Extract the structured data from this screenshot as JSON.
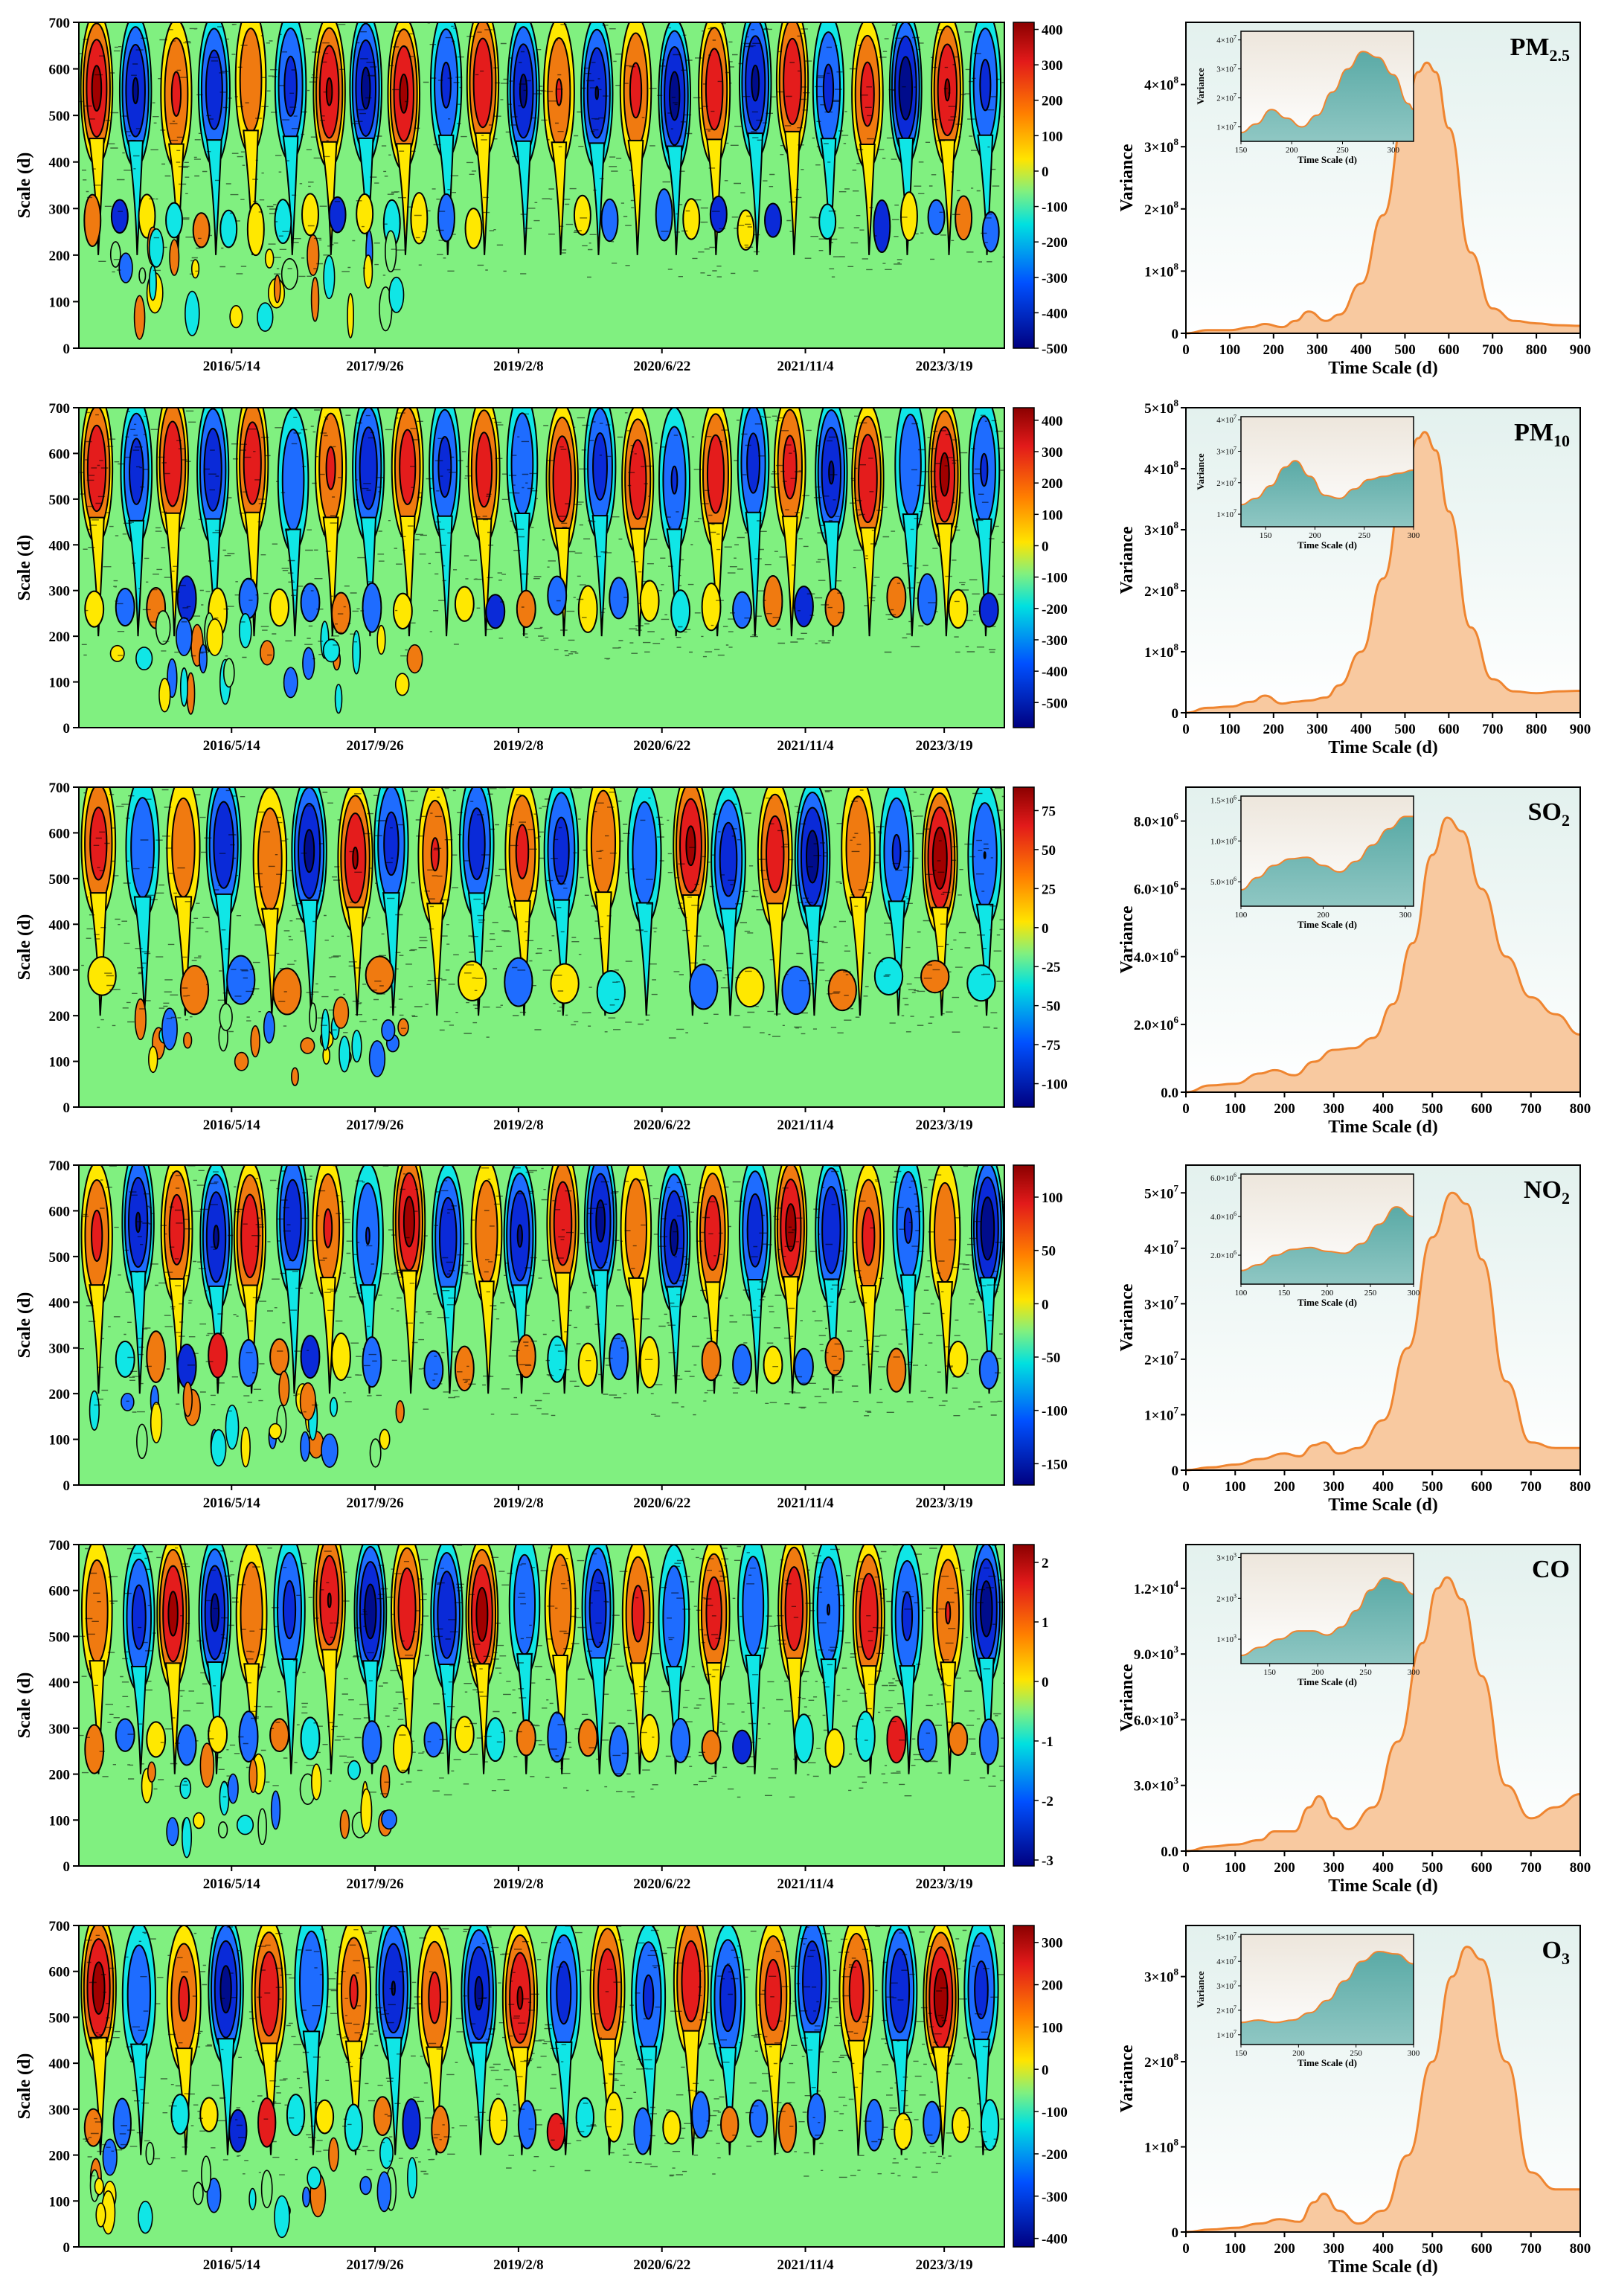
{
  "chart_data": [
    {
      "type": "heatmap",
      "pollutant": "PM2.5",
      "ylabel": "Scale (d)",
      "ylim": [
        0,
        700
      ],
      "yticks": [
        "0",
        "100",
        "200",
        "300",
        "400",
        "500",
        "600",
        "700"
      ],
      "xticks": [
        "2016/5/14",
        "2017/9/26",
        "2019/2/8",
        "2020/6/22",
        "2021/11/4",
        "2023/3/19"
      ],
      "colorbar_ticks": [
        "400",
        "300",
        "200",
        "100",
        "0",
        "-100",
        "-200",
        "-300",
        "-400",
        "-500"
      ],
      "colorbar_range": [
        -500,
        420
      ],
      "lobes": 24,
      "mid_lobes": 34
    },
    {
      "type": "area",
      "title_main": "PM",
      "title_sub": "2.5",
      "xlabel": "Time Scale (d)",
      "ylabel": "Variance",
      "xlim": [
        0,
        900
      ],
      "xticks": [
        "0",
        "100",
        "200",
        "300",
        "400",
        "500",
        "600",
        "700",
        "800",
        "900"
      ],
      "ylim": [
        0,
        5
      ],
      "yticks": [
        "0",
        "1×10",
        "2×10",
        "3×10",
        "4×10"
      ],
      "ytick_exp": "8",
      "peak_x": 550,
      "peak_y": 4.35,
      "curve_x": [
        0,
        50,
        100,
        150,
        180,
        220,
        250,
        280,
        320,
        350,
        400,
        450,
        500,
        530,
        550,
        570,
        600,
        650,
        700,
        750,
        800,
        850,
        900
      ],
      "curve_y": [
        0,
        0.05,
        0.05,
        0.1,
        0.15,
        0.1,
        0.2,
        0.35,
        0.2,
        0.3,
        0.8,
        1.9,
        3.5,
        4.2,
        4.35,
        4.2,
        3.3,
        1.3,
        0.4,
        0.2,
        0.16,
        0.13,
        0.12
      ],
      "inset": {
        "xlabel": "Time Scale (d)",
        "ylabel": "Variance",
        "xticks": [
          "150",
          "200",
          "250",
          "300"
        ],
        "xlim": [
          150,
          320
        ],
        "yticks": [
          "1×10",
          "2×10",
          "3×10",
          "4×10"
        ],
        "ytick_exp": "7",
        "ylim": [
          0.5,
          4.3
        ],
        "curve_x": [
          150,
          165,
          180,
          195,
          210,
          225,
          240,
          255,
          270,
          285,
          300,
          315,
          320
        ],
        "curve_y": [
          0.8,
          1.1,
          1.6,
          1.3,
          1.0,
          1.4,
          2.2,
          3.0,
          3.6,
          3.4,
          2.8,
          1.8,
          1.6
        ]
      }
    },
    {
      "type": "heatmap",
      "pollutant": "PM10",
      "ylabel": "Scale (d)",
      "ylim": [
        0,
        700
      ],
      "yticks": [
        "0",
        "100",
        "200",
        "300",
        "400",
        "500",
        "600",
        "700"
      ],
      "xticks": [
        "2016/5/14",
        "2017/9/26",
        "2019/2/8",
        "2020/6/22",
        "2021/11/4",
        "2023/3/19"
      ],
      "colorbar_ticks": [
        "400",
        "300",
        "200",
        "100",
        "0",
        "-100",
        "-200",
        "-300",
        "-400",
        "-500"
      ],
      "colorbar_range": [
        -580,
        440
      ],
      "lobes": 24,
      "mid_lobes": 30
    },
    {
      "type": "area",
      "title_main": "PM",
      "title_sub": "10",
      "xlabel": "Time Scale (d)",
      "ylabel": "Variance",
      "xlim": [
        0,
        900
      ],
      "xticks": [
        "0",
        "100",
        "200",
        "300",
        "400",
        "500",
        "600",
        "700",
        "800",
        "900"
      ],
      "ylim": [
        0,
        5
      ],
      "yticks": [
        "0",
        "1×10",
        "2×10",
        "3×10",
        "4×10",
        "5×10"
      ],
      "ytick_exp": "8",
      "peak_x": 545,
      "peak_y": 4.6,
      "curve_x": [
        0,
        50,
        100,
        150,
        180,
        220,
        250,
        280,
        320,
        350,
        400,
        450,
        500,
        530,
        545,
        570,
        600,
        650,
        700,
        750,
        800,
        850,
        900
      ],
      "curve_y": [
        0,
        0.08,
        0.1,
        0.18,
        0.28,
        0.15,
        0.18,
        0.2,
        0.25,
        0.45,
        1.0,
        2.2,
        3.9,
        4.5,
        4.6,
        4.3,
        3.3,
        1.4,
        0.55,
        0.35,
        0.32,
        0.35,
        0.36
      ],
      "inset": {
        "xlabel": "Time Scale (d)",
        "ylabel": "Variance",
        "xticks": [
          "150",
          "200",
          "250",
          "300"
        ],
        "xlim": [
          125,
          300
        ],
        "yticks": [
          "1×10",
          "2×10",
          "3×10",
          "4×10"
        ],
        "ytick_exp": "7",
        "ylim": [
          0.6,
          4.1
        ],
        "curve_x": [
          125,
          140,
          155,
          170,
          180,
          195,
          210,
          225,
          240,
          255,
          270,
          285,
          300
        ],
        "curve_y": [
          1.3,
          1.5,
          1.9,
          2.5,
          2.7,
          2.2,
          1.6,
          1.5,
          1.8,
          2.1,
          2.2,
          2.3,
          2.4
        ]
      }
    },
    {
      "type": "heatmap",
      "pollutant": "SO2",
      "ylabel": "Scale (d)",
      "ylim": [
        0,
        700
      ],
      "yticks": [
        "0",
        "100",
        "200",
        "300",
        "400",
        "500",
        "600",
        "700"
      ],
      "xticks": [
        "2016/5/14",
        "2017/9/26",
        "2019/2/8",
        "2020/6/22",
        "2021/11/4",
        "2023/3/19"
      ],
      "colorbar_ticks": [
        "75",
        "50",
        "25",
        "0",
        "-25",
        "-50",
        "-75",
        "-100"
      ],
      "colorbar_range": [
        -115,
        90
      ],
      "lobes": 22,
      "mid_lobes": 20
    },
    {
      "type": "area",
      "title_main": "SO",
      "title_sub": "2",
      "xlabel": "Time Scale (d)",
      "ylabel": "Variance",
      "xlim": [
        0,
        800
      ],
      "xticks": [
        "0",
        "100",
        "200",
        "300",
        "400",
        "500",
        "600",
        "700",
        "800"
      ],
      "ylim": [
        0,
        9
      ],
      "yticks": [
        "0.0",
        "2.0×10",
        "4.0×10",
        "6.0×10",
        "8.0×10"
      ],
      "ytick_exp": "6",
      "peak_x": 530,
      "peak_y": 8.1,
      "curve_x": [
        0,
        50,
        100,
        150,
        180,
        220,
        260,
        300,
        340,
        380,
        420,
        460,
        500,
        530,
        560,
        600,
        650,
        700,
        750,
        800
      ],
      "curve_y": [
        0,
        0.2,
        0.25,
        0.55,
        0.65,
        0.5,
        0.9,
        1.25,
        1.3,
        1.6,
        2.6,
        4.4,
        7.0,
        8.1,
        7.7,
        6.0,
        4.0,
        2.8,
        2.3,
        1.7
      ],
      "inset": {
        "xlabel": "Time Scale (d)",
        "ylabel": "",
        "xticks": [
          "100",
          "200",
          "300"
        ],
        "xlim": [
          100,
          310
        ],
        "yticks": [
          "5.0×10",
          "1.0×10",
          "1.5×10"
        ],
        "ytick_exp": "6",
        "ylim": [
          0.2,
          1.55
        ],
        "curve_x": [
          100,
          120,
          140,
          160,
          180,
          200,
          220,
          240,
          260,
          280,
          300,
          310
        ],
        "curve_y": [
          0.4,
          0.55,
          0.7,
          0.78,
          0.8,
          0.7,
          0.62,
          0.75,
          0.95,
          1.15,
          1.3,
          1.3
        ]
      }
    },
    {
      "type": "area",
      "title_main": "NO",
      "title_sub": "2",
      "xlabel": "Time Scale (d)",
      "ylabel": "Variance",
      "xlim": [
        0,
        800
      ],
      "xticks": [
        "0",
        "100",
        "200",
        "300",
        "400",
        "500",
        "600",
        "700",
        "800"
      ],
      "ylim": [
        0,
        5.5
      ],
      "yticks": [
        "0",
        "1×10",
        "2×10",
        "3×10",
        "4×10",
        "5×10"
      ],
      "ytick_exp": "7",
      "peak_x": 540,
      "peak_y": 5.0,
      "curve_x": [
        0,
        50,
        100,
        150,
        200,
        230,
        260,
        280,
        310,
        350,
        400,
        450,
        500,
        540,
        570,
        600,
        650,
        700,
        750,
        800
      ],
      "curve_y": [
        0,
        0.05,
        0.1,
        0.2,
        0.3,
        0.25,
        0.45,
        0.5,
        0.3,
        0.4,
        0.9,
        2.2,
        4.2,
        5.0,
        4.8,
        3.8,
        1.6,
        0.5,
        0.4,
        0.4
      ],
      "inset": {
        "xlabel": "Time Scale (d)",
        "ylabel": "",
        "xticks": [
          "100",
          "150",
          "200",
          "250",
          "300"
        ],
        "xlim": [
          100,
          300
        ],
        "yticks": [
          "2.0×10",
          "4.0×10",
          "6.0×10"
        ],
        "ytick_exp": "6",
        "ylim": [
          0.5,
          6.2
        ],
        "curve_x": [
          100,
          120,
          140,
          160,
          180,
          200,
          220,
          240,
          260,
          280,
          300
        ],
        "curve_y": [
          1.2,
          1.5,
          2.0,
          2.3,
          2.4,
          2.2,
          2.1,
          2.6,
          3.6,
          4.5,
          4.0
        ]
      }
    },
    {
      "type": "heatmap",
      "pollutant": "NO2",
      "ylabel": "Scale (d)",
      "ylim": [
        0,
        700
      ],
      "yticks": [
        "0",
        "100",
        "200",
        "300",
        "400",
        "500",
        "600",
        "700"
      ],
      "xticks": [
        "2016/5/14",
        "2017/9/26",
        "2019/2/8",
        "2020/6/22",
        "2021/11/4",
        "2023/3/19"
      ],
      "colorbar_ticks": [
        "100",
        "50",
        "0",
        "-50",
        "-100",
        "-150"
      ],
      "colorbar_range": [
        -170,
        130
      ],
      "lobes": 24,
      "mid_lobes": 30
    },
    {
      "type": "heatmap",
      "pollutant": "CO",
      "ylabel": "Scale (d)",
      "ylim": [
        0,
        700
      ],
      "yticks": [
        "0",
        "100",
        "200",
        "300",
        "400",
        "500",
        "600",
        "700"
      ],
      "xticks": [
        "2016/5/14",
        "2017/9/26",
        "2019/2/8",
        "2020/6/22",
        "2021/11/4",
        "2023/3/19"
      ],
      "colorbar_ticks": [
        "2",
        "1",
        "0",
        "-1",
        "-2",
        "-3"
      ],
      "colorbar_range": [
        -3.1,
        2.3
      ],
      "lobes": 24,
      "mid_lobes": 30
    },
    {
      "type": "area",
      "title_main": "CO",
      "title_sub": "",
      "xlabel": "Time Scale (d)",
      "ylabel": "Variance",
      "xlim": [
        0,
        800
      ],
      "xticks": [
        "0",
        "100",
        "200",
        "300",
        "400",
        "500",
        "600",
        "700",
        "800"
      ],
      "ylim": [
        0,
        1.4
      ],
      "yticks": [
        "0.0",
        "3.0×10",
        "6.0×10",
        "9.0×10",
        "1.2×10"
      ],
      "ytick_exp3": "3",
      "ytick_exp4": "4",
      "ytick_exps": [
        "",
        "3",
        "3",
        "3",
        "4"
      ],
      "peak_x": 530,
      "peak_y": 1.25,
      "curve_x": [
        0,
        50,
        100,
        150,
        180,
        220,
        250,
        270,
        300,
        330,
        380,
        430,
        480,
        510,
        530,
        560,
        600,
        650,
        700,
        750,
        800
      ],
      "curve_y": [
        0,
        0.02,
        0.03,
        0.05,
        0.09,
        0.09,
        0.2,
        0.25,
        0.15,
        0.1,
        0.2,
        0.5,
        0.95,
        1.2,
        1.25,
        1.15,
        0.8,
        0.3,
        0.15,
        0.2,
        0.26
      ],
      "inset": {
        "xlabel": "Time Scale (d)",
        "ylabel": "",
        "xticks": [
          "150",
          "200",
          "250",
          "300"
        ],
        "xlim": [
          120,
          300
        ],
        "yticks": [
          "1×10",
          "2×10",
          "3×10"
        ],
        "ytick_exp": "3",
        "ylim": [
          0.4,
          3.1
        ],
        "curve_x": [
          120,
          140,
          160,
          180,
          195,
          210,
          225,
          240,
          255,
          270,
          285,
          300
        ],
        "curve_y": [
          0.6,
          0.8,
          1.0,
          1.2,
          1.2,
          1.1,
          1.3,
          1.7,
          2.2,
          2.5,
          2.4,
          2.1
        ]
      }
    },
    {
      "type": "heatmap",
      "pollutant": "O3",
      "ylabel": "Scale (d)",
      "ylim": [
        0,
        700
      ],
      "yticks": [
        "0",
        "100",
        "200",
        "300",
        "400",
        "500",
        "600",
        "700"
      ],
      "xticks": [
        "2016/5/14",
        "2017/9/26",
        "2019/2/8",
        "2020/6/22",
        "2021/11/4",
        "2023/3/19"
      ],
      "colorbar_ticks": [
        "300",
        "200",
        "100",
        "0",
        "-100",
        "-200",
        "-300",
        "-400"
      ],
      "colorbar_range": [
        -420,
        340
      ],
      "lobes": 22,
      "mid_lobes": 32
    },
    {
      "type": "area",
      "title_main": "O",
      "title_sub": "3",
      "xlabel": "Time Scale (d)",
      "ylabel": "Variance",
      "xlim": [
        0,
        800
      ],
      "xticks": [
        "0",
        "100",
        "200",
        "300",
        "400",
        "500",
        "600",
        "700",
        "800"
      ],
      "ylim": [
        0,
        3.6
      ],
      "yticks": [
        "0",
        "1×10",
        "2×10",
        "3×10"
      ],
      "ytick_exp": "8",
      "peak_x": 570,
      "peak_y": 3.35,
      "curve_x": [
        0,
        50,
        100,
        150,
        190,
        230,
        260,
        280,
        310,
        350,
        400,
        450,
        500,
        540,
        570,
        600,
        650,
        700,
        750,
        800
      ],
      "curve_y": [
        0,
        0.03,
        0.05,
        0.1,
        0.15,
        0.12,
        0.35,
        0.45,
        0.25,
        0.1,
        0.25,
        0.9,
        2.0,
        3.0,
        3.35,
        3.2,
        2.0,
        0.7,
        0.5,
        0.5
      ],
      "inset": {
        "xlabel": "Time Scale (d)",
        "ylabel": "Variance",
        "xticks": [
          "150",
          "200",
          "250",
          "300"
        ],
        "xlim": [
          150,
          300
        ],
        "yticks": [
          "1×10",
          "2×10",
          "3×10",
          "4×10",
          "5×10"
        ],
        "ytick_exp": "7",
        "ylim": [
          0.6,
          5.1
        ],
        "curve_x": [
          150,
          165,
          180,
          195,
          210,
          225,
          240,
          255,
          270,
          285,
          300
        ],
        "curve_y": [
          1.5,
          1.6,
          1.5,
          1.6,
          1.9,
          2.4,
          3.2,
          4.0,
          4.4,
          4.3,
          3.9
        ]
      }
    }
  ],
  "colors": {
    "background_green": "#80f080",
    "line_orange": "#ef8530",
    "fill_peach": "#f8c9a0",
    "inset_fill": "#6fb7b4",
    "panel_grad_top": "#e8f4f1",
    "panel_grad_bottom": "#ffffff"
  }
}
